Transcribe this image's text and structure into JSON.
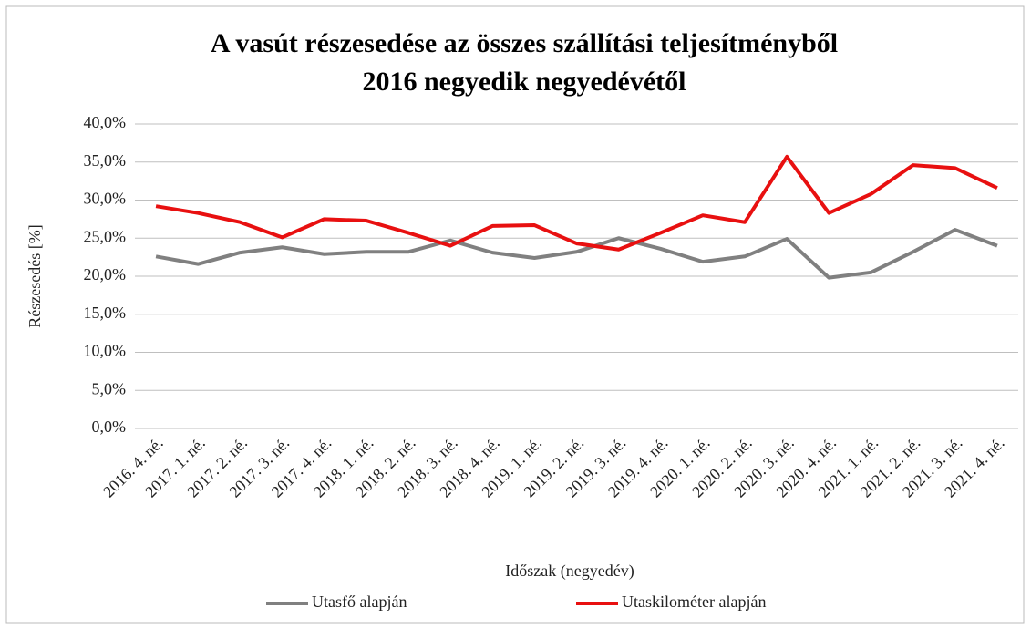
{
  "chart_data": {
    "type": "line",
    "title": "A vasút részesedése az összes szállítási teljesítményből",
    "subtitle": "2016 negyedik negyedévétől",
    "x_label": "Időszak (negyedév)",
    "y_label": "Részesedés [%]",
    "categories": [
      "2016. 4. né.",
      "2017. 1. né.",
      "2017. 2. né.",
      "2017. 3. né.",
      "2017. 4. né.",
      "2018. 1. né.",
      "2018. 2. né.",
      "2018. 3. né.",
      "2018. 4. né.",
      "2019. 1. né.",
      "2019. 2. né.",
      "2019. 3. né.",
      "2019. 4. né.",
      "2020. 1. né.",
      "2020. 2. né.",
      "2020. 3. né.",
      "2020. 4. né.",
      "2021. 1. né.",
      "2021. 2. né.",
      "2021. 3. né.",
      "2021. 4. né."
    ],
    "series": [
      {
        "name": "Utasfő alapján",
        "color": "#808080",
        "values": [
          22.6,
          21.6,
          23.1,
          23.8,
          22.9,
          23.2,
          23.2,
          24.7,
          23.1,
          22.4,
          23.2,
          25.0,
          23.6,
          21.9,
          22.6,
          24.9,
          19.8,
          20.5,
          23.2,
          26.1,
          24.0
        ]
      },
      {
        "name": "Utaskilométer alapján",
        "color": "#e81010",
        "values": [
          29.2,
          28.3,
          27.1,
          25.1,
          27.5,
          27.3,
          25.7,
          24.0,
          26.6,
          26.7,
          24.3,
          23.5,
          25.7,
          28.0,
          27.1,
          35.7,
          28.3,
          30.8,
          34.6,
          34.2,
          31.6
        ]
      }
    ],
    "ylim": [
      0,
      40
    ],
    "yticks": [
      {
        "value": 0,
        "label": "0,0%"
      },
      {
        "value": 5,
        "label": "5,0%"
      },
      {
        "value": 10,
        "label": "10,0%"
      },
      {
        "value": 15,
        "label": "15,0%"
      },
      {
        "value": 20,
        "label": "20,0%"
      },
      {
        "value": 25,
        "label": "25,0%"
      },
      {
        "value": 30,
        "label": "30,0%"
      },
      {
        "value": 35,
        "label": "35,0%"
      },
      {
        "value": 40,
        "label": "40,0%"
      }
    ],
    "grid": true,
    "legend": "bottom"
  }
}
